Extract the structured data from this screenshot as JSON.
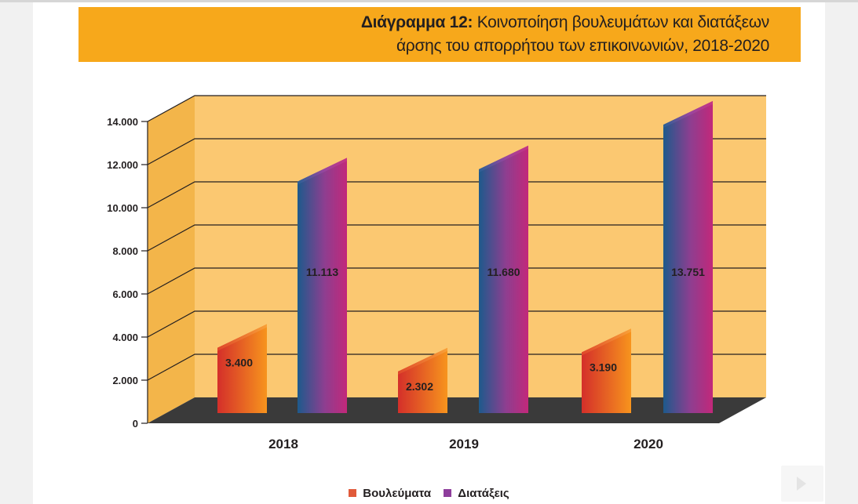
{
  "title": {
    "prefix": "Διάγραμμα 12:",
    "line1": "Κοινοποίηση βουλευμάτων και διατάξεων",
    "line2": "άρσης του απορρήτου των επικοινωνιών, 2018-2020"
  },
  "colors": {
    "banner": "#f7a81b",
    "wall": "#fbc871",
    "side_wall": "#f3b54a",
    "floor": "#3a3a3a",
    "series1_gradient": [
      "#d42f2a",
      "#f7941d"
    ],
    "series2_gradient": [
      "#1d5a8c",
      "#a33c8f",
      "#c2287a"
    ],
    "legend_series1": "#e15a3a",
    "legend_series2": "#8e3e9c"
  },
  "chart_data": {
    "type": "bar",
    "style": "3d",
    "categories": [
      "2018",
      "2019",
      "2020"
    ],
    "series": [
      {
        "name": "Βουλεύματα",
        "values": [
          3400,
          2302,
          3190
        ],
        "labels": [
          "3.400",
          "2.302",
          "3.190"
        ]
      },
      {
        "name": "Διατάξεις",
        "values": [
          11113,
          11680,
          13751
        ],
        "labels": [
          "11.113",
          "11.680",
          "13.751"
        ]
      }
    ],
    "ylim": [
      0,
      14000
    ],
    "yticks": [
      0,
      2000,
      4000,
      6000,
      8000,
      10000,
      12000,
      14000
    ],
    "ytick_labels": [
      "0",
      "2.000",
      "4.000",
      "6.000",
      "8.000",
      "10.000",
      "12.000",
      "14.000"
    ],
    "grid": true,
    "legend_position": "bottom-center"
  },
  "legend": {
    "items": [
      {
        "label": "Βουλεύματα"
      },
      {
        "label": "Διατάξεις"
      }
    ]
  }
}
